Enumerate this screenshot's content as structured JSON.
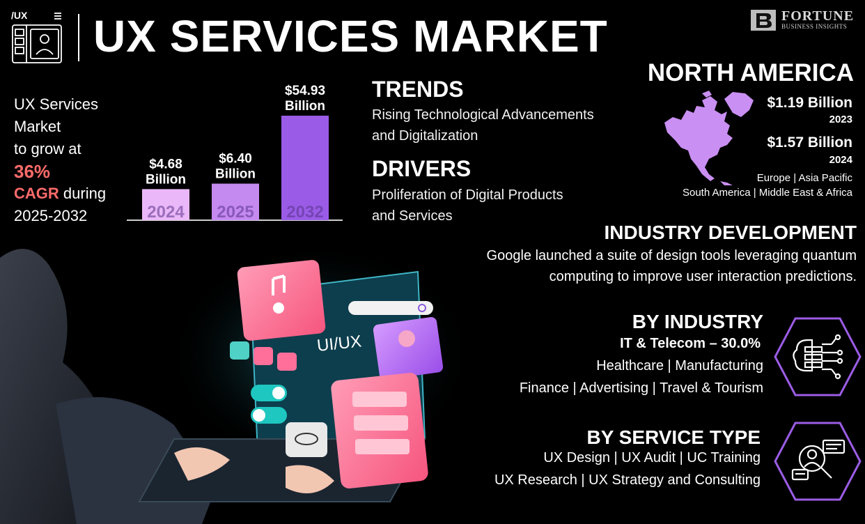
{
  "header": {
    "logo_label": "/UX",
    "title": "UX SERVICES MARKET",
    "brand_name": "FORTUNE",
    "brand_sub": "BUSINESS INSIGHTS"
  },
  "summary": {
    "line1": "UX Services",
    "line2": "Market",
    "line3": "to grow at",
    "cagr_value": "36%",
    "cagr_label": "CAGR",
    "during": " during",
    "period": "2025-2032"
  },
  "chart_data": {
    "type": "bar",
    "categories": [
      "2024",
      "2025",
      "2032"
    ],
    "values": [
      4.68,
      6.4,
      54.93
    ],
    "data_labels": [
      [
        "$4.68",
        "Billion"
      ],
      [
        "$6.40",
        "Billion"
      ],
      [
        "$54.93",
        "Billion"
      ]
    ],
    "colors": [
      "#eab8f8",
      "#c48af0",
      "#9a5ce6"
    ],
    "title": "",
    "xlabel": "",
    "ylabel": "",
    "ylim": [
      0,
      60
    ]
  },
  "trends": {
    "heading": "TRENDS",
    "line1": "Rising Technological Advancements",
    "line2": "and Digitalization"
  },
  "drivers": {
    "heading": "DRIVERS",
    "line1": "Proliferation of Digital Products",
    "line2": "and Services"
  },
  "north_america": {
    "heading": "NORTH AMERICA",
    "value_1": "$1.19 Billion",
    "year_1": "2023",
    "value_2": "$1.57 Billion",
    "year_2": "2024",
    "regions_line1": "Europe  |  Asia Pacific",
    "regions_line2": "South America  |  Middle East & Africa",
    "map_color": "#c98ff2"
  },
  "industry_development": {
    "heading": "INDUSTRY DEVELOPMENT",
    "line1": "Google launched a suite of design tools leveraging quantum",
    "line2": "computing to improve user interaction predictions."
  },
  "by_industry": {
    "heading": "BY INDUSTRY",
    "share": "IT & Telecom – 30.0%",
    "row1": "Healthcare  |  Manufacturing",
    "row2": "Finance  |  Advertising  |  Travel & Tourism",
    "icon": "circuit-brain-icon"
  },
  "by_service_type": {
    "heading": "BY SERVICE TYPE",
    "row1": "UX Design  |  UX Audit  |  UC Training",
    "row2": "UX Research  |  UX Strategy and Consulting",
    "icon": "user-research-icon"
  },
  "illustration": {
    "screen_label": "UI/UX"
  },
  "colors": {
    "accent": "#9a5ce6",
    "cagr_highlight": "#ff6b6b",
    "hex_stroke": "#9b5de5"
  }
}
